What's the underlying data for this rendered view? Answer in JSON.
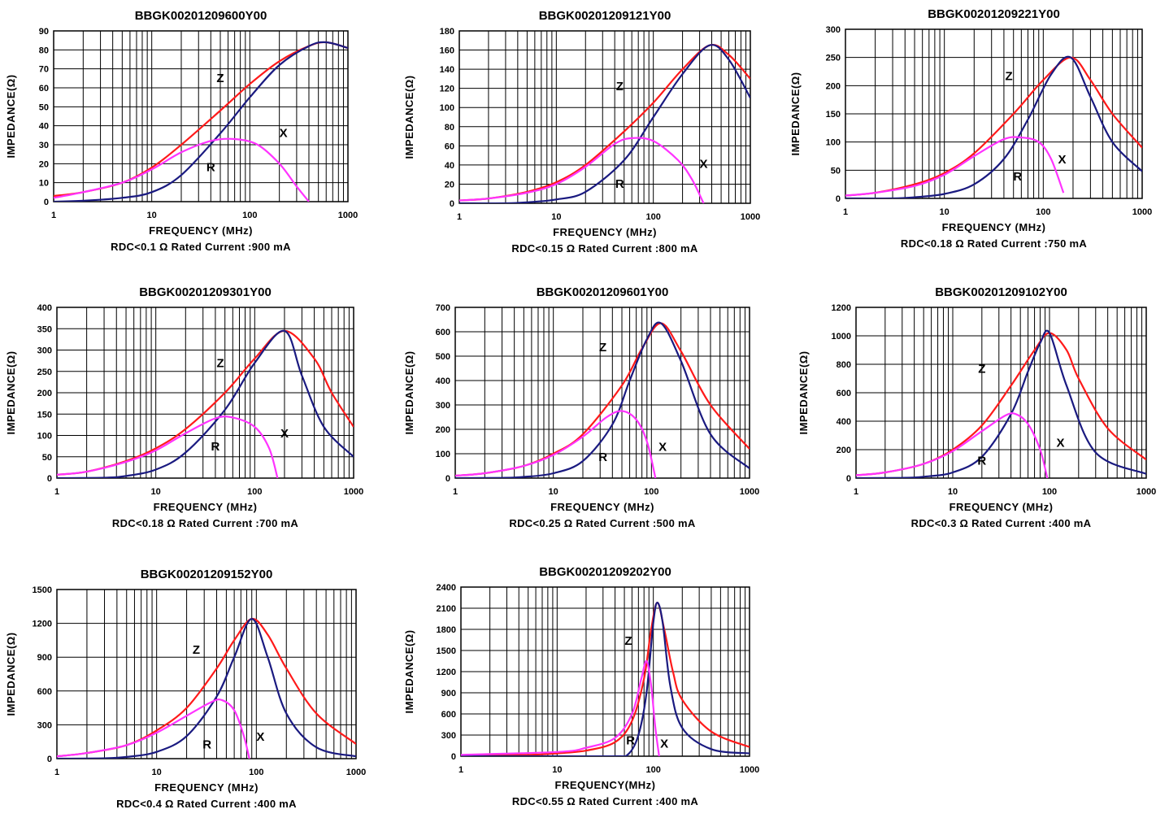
{
  "colors": {
    "Z": "#ff1a1a",
    "R": "#1a1a80",
    "X": "#ff33ff"
  },
  "chart_data": [
    {
      "type": "line",
      "title": "BBGK00201209600Y00",
      "xlabel": "FREQUENCY (MHz)",
      "ylabel": "IMPEDANCE(Ω)",
      "footnote": "RDC<0.1 Ω Rated Current :900 mA",
      "x_scale": "log",
      "xlim": [
        1,
        1000
      ],
      "ylim": [
        0,
        90
      ],
      "x_ticks": [
        "1",
        "10",
        "100",
        "1000"
      ],
      "y_ticks": [
        "0",
        "10",
        "20",
        "30",
        "40",
        "50",
        "60",
        "70",
        "80",
        "90"
      ],
      "series": [
        {
          "name": "Z",
          "x": [
            1,
            2,
            5,
            10,
            20,
            50,
            100,
            200,
            400,
            600,
            1000
          ],
          "values": [
            3,
            5,
            10,
            18,
            30,
            48,
            62,
            74,
            82,
            84,
            81
          ]
        },
        {
          "name": "R",
          "x": [
            1,
            2,
            5,
            10,
            20,
            50,
            100,
            200,
            400,
            600,
            1000
          ],
          "values": [
            0,
            0.5,
            2,
            5,
            14,
            36,
            55,
            72,
            82,
            84,
            81
          ]
        },
        {
          "name": "X",
          "x": [
            1,
            2,
            5,
            10,
            20,
            40,
            70,
            120,
            200,
            300,
            400
          ],
          "values": [
            2,
            5,
            10,
            17,
            26,
            32,
            33,
            30,
            20,
            8,
            0
          ]
        }
      ],
      "curve_labels": [
        {
          "text": "Z",
          "x": 50,
          "y": 63
        },
        {
          "text": "X",
          "x": 220,
          "y": 34
        },
        {
          "text": "R",
          "x": 40,
          "y": 16
        }
      ]
    },
    {
      "type": "line",
      "title": "BBGK00201209121Y00",
      "xlabel": "FREQUENCY (MHz)",
      "ylabel": "IMPEDANCE(Ω)",
      "footnote": "RDC<0.15 Ω Rated Current :800 mA",
      "x_scale": "log",
      "xlim": [
        1,
        1000
      ],
      "ylim": [
        0,
        180
      ],
      "x_ticks": [
        "1",
        "10",
        "100",
        "1000"
      ],
      "y_ticks": [
        "0",
        "20",
        "40",
        "60",
        "80",
        "100",
        "120",
        "140",
        "160",
        "180"
      ],
      "series": [
        {
          "name": "Z",
          "x": [
            1,
            2,
            5,
            10,
            20,
            50,
            100,
            200,
            380,
            600,
            1000
          ],
          "values": [
            3,
            5,
            12,
            22,
            40,
            75,
            105,
            140,
            165,
            155,
            130
          ]
        },
        {
          "name": "R",
          "x": [
            1,
            3,
            5,
            10,
            20,
            50,
            100,
            200,
            380,
            600,
            1000
          ],
          "values": [
            0,
            0,
            1,
            4,
            12,
            45,
            90,
            135,
            165,
            150,
            110
          ]
        },
        {
          "name": "X",
          "x": [
            1,
            2,
            5,
            10,
            20,
            40,
            60,
            100,
            180,
            250,
            330
          ],
          "values": [
            3,
            5,
            11,
            20,
            38,
            62,
            68,
            65,
            45,
            25,
            0
          ]
        }
      ],
      "curve_labels": [
        {
          "text": "Z",
          "x": 45,
          "y": 118
        },
        {
          "text": "X",
          "x": 330,
          "y": 37
        },
        {
          "text": "R",
          "x": 45,
          "y": 16
        }
      ]
    },
    {
      "type": "line",
      "title": "BBGK00201209221Y00",
      "xlabel": "FREQUENCY (MHz)",
      "ylabel": "IMPEDANCE(Ω)",
      "footnote": "RDC<0.18 Ω Rated Current :750 mA",
      "x_scale": "log",
      "xlim": [
        1,
        1000
      ],
      "ylim": [
        0,
        300
      ],
      "x_ticks": [
        "1",
        "10",
        "100",
        "1000"
      ],
      "y_ticks": [
        "0",
        "50",
        "100",
        "150",
        "200",
        "250",
        "300"
      ],
      "series": [
        {
          "name": "Z",
          "x": [
            1,
            2,
            5,
            10,
            20,
            50,
            100,
            190,
            300,
            500,
            1000
          ],
          "values": [
            5,
            10,
            25,
            45,
            80,
            150,
            210,
            250,
            210,
            150,
            90
          ]
        },
        {
          "name": "R",
          "x": [
            1,
            3,
            5,
            10,
            20,
            40,
            70,
            120,
            190,
            300,
            500,
            1000
          ],
          "values": [
            0,
            0,
            2,
            8,
            25,
            70,
            140,
            220,
            250,
            180,
            100,
            48
          ]
        },
        {
          "name": "X",
          "x": [
            1,
            2,
            5,
            10,
            20,
            40,
            60,
            90,
            120,
            160
          ],
          "values": [
            5,
            10,
            22,
            42,
            75,
            105,
            108,
            100,
            70,
            10
          ]
        }
      ],
      "curve_labels": [
        {
          "text": "Z",
          "x": 45,
          "y": 210
        },
        {
          "text": "X",
          "x": 155,
          "y": 62
        },
        {
          "text": "R",
          "x": 55,
          "y": 32
        }
      ]
    },
    {
      "type": "line",
      "title": "BBGK00201209301Y00",
      "xlabel": "FREQUENCY (MHz)",
      "ylabel": "IMPEDANCE(Ω)",
      "footnote": "RDC<0.18 Ω Rated Current :700 mA",
      "x_scale": "log",
      "xlim": [
        1,
        1000
      ],
      "ylim": [
        0,
        400
      ],
      "x_ticks": [
        "1",
        "10",
        "100",
        "1000"
      ],
      "y_ticks": [
        "0",
        "50",
        "100",
        "150",
        "200",
        "250",
        "300",
        "350",
        "400"
      ],
      "series": [
        {
          "name": "Z",
          "x": [
            1,
            2,
            5,
            10,
            20,
            50,
            100,
            200,
            400,
            600,
            1000
          ],
          "values": [
            8,
            15,
            40,
            70,
            115,
            200,
            280,
            345,
            280,
            200,
            120
          ]
        },
        {
          "name": "R",
          "x": [
            1,
            3,
            5,
            10,
            20,
            50,
            100,
            200,
            300,
            500,
            1000
          ],
          "values": [
            0,
            1,
            5,
            20,
            60,
            160,
            270,
            345,
            240,
            120,
            50
          ]
        },
        {
          "name": "X",
          "x": [
            1,
            2,
            5,
            10,
            20,
            40,
            60,
            100,
            140,
            170
          ],
          "values": [
            8,
            15,
            38,
            65,
            105,
            140,
            142,
            120,
            70,
            0
          ]
        }
      ],
      "curve_labels": [
        {
          "text": "Z",
          "x": 45,
          "y": 260
        },
        {
          "text": "X",
          "x": 200,
          "y": 95
        },
        {
          "text": "R",
          "x": 40,
          "y": 65
        }
      ]
    },
    {
      "type": "line",
      "title": "BBGK00201209601Y00",
      "xlabel": "FREQUENCY (MHz)",
      "ylabel": "IMPEDANCE(Ω)",
      "footnote": "RDC<0.25 Ω Rated Current :500 mA",
      "x_scale": "log",
      "xlim": [
        1,
        1000
      ],
      "ylim": [
        0,
        700
      ],
      "x_ticks": [
        "1",
        "10",
        "100",
        "1000"
      ],
      "y_ticks": [
        "0",
        "100",
        "200",
        "300",
        "400",
        "500",
        "600",
        "700"
      ],
      "series": [
        {
          "name": "Z",
          "x": [
            1,
            2,
            5,
            10,
            20,
            50,
            80,
            125,
            200,
            400,
            1000
          ],
          "values": [
            10,
            20,
            50,
            100,
            180,
            380,
            530,
            635,
            520,
            300,
            120
          ]
        },
        {
          "name": "R",
          "x": [
            1,
            3,
            5,
            10,
            20,
            40,
            60,
            90,
            125,
            200,
            400,
            1000
          ],
          "values": [
            0,
            1,
            5,
            20,
            70,
            220,
            400,
            570,
            635,
            480,
            180,
            40
          ]
        },
        {
          "name": "X",
          "x": [
            1,
            2,
            5,
            10,
            20,
            35,
            50,
            70,
            90,
            110
          ],
          "values": [
            10,
            20,
            50,
            95,
            170,
            250,
            275,
            240,
            150,
            0
          ]
        }
      ],
      "curve_labels": [
        {
          "text": "Z",
          "x": 32,
          "y": 520
        },
        {
          "text": "X",
          "x": 130,
          "y": 112
        },
        {
          "text": "R",
          "x": 32,
          "y": 70
        }
      ]
    },
    {
      "type": "line",
      "title": "BBGK00201209102Y00",
      "xlabel": "FREQUENCY (MHz)",
      "ylabel": "IMPEDANCE(Ω)",
      "footnote": "RDC<0.3 Ω Rated Current :400 mA",
      "x_scale": "log",
      "xlim": [
        1,
        1000
      ],
      "ylim": [
        0,
        1200
      ],
      "x_ticks": [
        "1",
        "10",
        "100",
        "1000"
      ],
      "y_ticks": [
        "0",
        "200",
        "400",
        "600",
        "800",
        "1000",
        "1200"
      ],
      "series": [
        {
          "name": "Z",
          "x": [
            1,
            2,
            5,
            10,
            20,
            40,
            70,
            100,
            150,
            200,
            400,
            1000
          ],
          "values": [
            20,
            40,
            100,
            200,
            370,
            650,
            900,
            1020,
            900,
            700,
            350,
            130
          ]
        },
        {
          "name": "R",
          "x": [
            1,
            3,
            5,
            10,
            20,
            40,
            60,
            80,
            100,
            150,
            300,
            1000
          ],
          "values": [
            0,
            2,
            10,
            40,
            150,
            450,
            750,
            950,
            1020,
            650,
            180,
            30
          ]
        },
        {
          "name": "X",
          "x": [
            1,
            2,
            5,
            10,
            20,
            35,
            45,
            60,
            80,
            95
          ],
          "values": [
            20,
            40,
            100,
            190,
            330,
            440,
            450,
            380,
            200,
            0
          ]
        }
      ],
      "curve_labels": [
        {
          "text": "Z",
          "x": 20,
          "y": 740
        },
        {
          "text": "X",
          "x": 130,
          "y": 220
        },
        {
          "text": "R",
          "x": 20,
          "y": 95
        }
      ]
    },
    {
      "type": "line",
      "title": "BBGK00201209152Y00",
      "xlabel": "FREQUENCY (MHz)",
      "ylabel": "IMPEDANCE(Ω)",
      "footnote": "RDC<0.4 Ω Rated Current :400 mA",
      "x_scale": "log",
      "xlim": [
        1,
        1000
      ],
      "ylim": [
        0,
        1500
      ],
      "x_ticks": [
        "1",
        "10",
        "100",
        "1000"
      ],
      "y_ticks": [
        "0",
        "300",
        "600",
        "900",
        "1200",
        "1500"
      ],
      "series": [
        {
          "name": "Z",
          "x": [
            1,
            2,
            5,
            10,
            20,
            40,
            60,
            90,
            130,
            200,
            400,
            1000
          ],
          "values": [
            20,
            50,
            120,
            250,
            450,
            800,
            1050,
            1240,
            1100,
            800,
            400,
            130
          ]
        },
        {
          "name": "R",
          "x": [
            1,
            3,
            5,
            10,
            20,
            40,
            60,
            90,
            130,
            200,
            400,
            1000
          ],
          "values": [
            0,
            3,
            15,
            60,
            200,
            550,
            900,
            1240,
            900,
            400,
            100,
            20
          ]
        },
        {
          "name": "X",
          "x": [
            1,
            2,
            5,
            10,
            20,
            35,
            45,
            60,
            75,
            85
          ],
          "values": [
            20,
            50,
            120,
            230,
            380,
            500,
            520,
            430,
            200,
            0
          ]
        }
      ],
      "curve_labels": [
        {
          "text": "Z",
          "x": 25,
          "y": 930
        },
        {
          "text": "X",
          "x": 110,
          "y": 160
        },
        {
          "text": "R",
          "x": 32,
          "y": 90
        }
      ]
    },
    {
      "type": "line",
      "title": "BBGK00201209202Y00",
      "xlabel": "FREQUENCY(MHz)",
      "ylabel": "IMPEDANCE(Ω)",
      "footnote": "RDC<0.55 Ω Rated Current :400 mA",
      "x_scale": "log",
      "xlim": [
        1,
        1000
      ],
      "ylim": [
        0,
        2400
      ],
      "x_ticks": [
        "1",
        "10",
        "100",
        "1000"
      ],
      "y_ticks": [
        "0",
        "300",
        "600",
        "900",
        "1200",
        "1500",
        "1800",
        "2100",
        "2400"
      ],
      "series": [
        {
          "name": "Z",
          "x": [
            1,
            5,
            10,
            20,
            40,
            60,
            80,
            95,
            110,
            130,
            160,
            200,
            400,
            1000
          ],
          "values": [
            10,
            20,
            40,
            80,
            200,
            500,
            1100,
            1800,
            2180,
            1800,
            1200,
            800,
            350,
            130
          ]
        },
        {
          "name": "R",
          "x": [
            1,
            10,
            40,
            55,
            70,
            85,
            100,
            110,
            125,
            150,
            200,
            400,
            1000
          ],
          "values": [
            0,
            0,
            0,
            30,
            300,
            900,
            1900,
            2180,
            1900,
            1000,
            400,
            100,
            40
          ]
        },
        {
          "name": "X",
          "x": [
            1,
            10,
            20,
            40,
            60,
            75,
            85,
            95,
            105,
            115
          ],
          "values": [
            20,
            60,
            120,
            260,
            600,
            1100,
            1350,
            1000,
            400,
            0
          ]
        }
      ],
      "curve_labels": [
        {
          "text": "Z",
          "x": 55,
          "y": 1580
        },
        {
          "text": "X",
          "x": 130,
          "y": 120
        },
        {
          "text": "R",
          "x": 58,
          "y": 170
        }
      ]
    }
  ]
}
